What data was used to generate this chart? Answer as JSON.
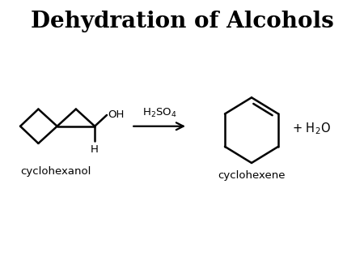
{
  "title": "Dehydration of Alcohols",
  "title_fontsize": 20,
  "title_fontweight": "bold",
  "background_color": "#ffffff",
  "line_color": "#000000",
  "line_width": 1.8,
  "label_cyclohexanol": "cyclohexanol",
  "label_cyclohexene": "cyclohexene",
  "reagent": "H$_2$SO$_4$",
  "product2": "+ H$_2$O",
  "oh_label": "OH",
  "h_label": "H",
  "figsize": [
    4.5,
    3.38
  ],
  "dpi": 100
}
